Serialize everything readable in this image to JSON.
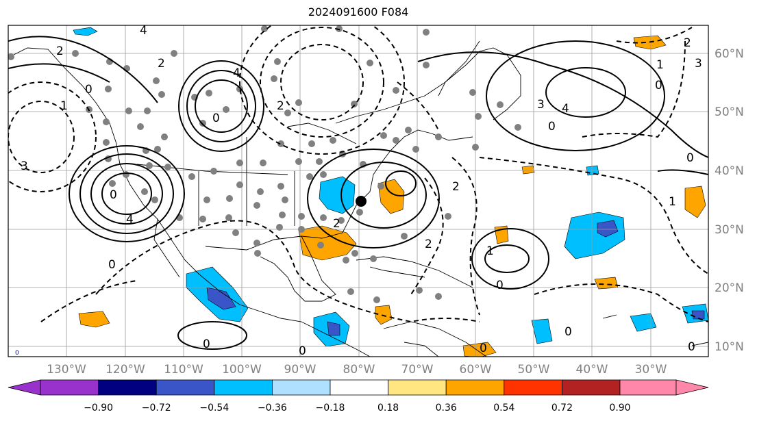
{
  "title": "2024091600 F084",
  "axes": {
    "lon_labels": [
      "130°W",
      "120°W",
      "110°W",
      "100°W",
      "90°W",
      "80°W",
      "70°W",
      "60°W",
      "50°W",
      "40°W",
      "30°W"
    ],
    "lat_labels": [
      "60°N",
      "50°N",
      "40°N",
      "30°N",
      "20°N",
      "10°N"
    ],
    "label_color": "#808080"
  },
  "contour_labels": [
    "4",
    "2",
    "0",
    "2",
    "4",
    "0",
    "1",
    "0",
    "3",
    "4",
    "0",
    "3",
    "2",
    "1",
    "0",
    "0",
    "4",
    "2",
    "0",
    "0",
    "0",
    "1",
    "0",
    "2",
    "2",
    "3",
    "0",
    "0",
    "1",
    "2",
    "0"
  ],
  "colorbar": {
    "tick_labels": [
      "−0.90",
      "−0.72",
      "−0.54",
      "−0.36",
      "−0.18",
      "0.18",
      "0.36",
      "0.54",
      "0.72",
      "0.90"
    ],
    "colors": [
      "#9932cc",
      "#000080",
      "#3a55c8",
      "#00bfff",
      "#b0e0ff",
      "#ffffff",
      "#ffe680",
      "#ffa500",
      "#ff3300",
      "#b22222",
      "#ff88aa"
    ],
    "extend_low_color": "#9932cc",
    "extend_high_color": "#ff88aa"
  },
  "corner_mark": "0"
}
